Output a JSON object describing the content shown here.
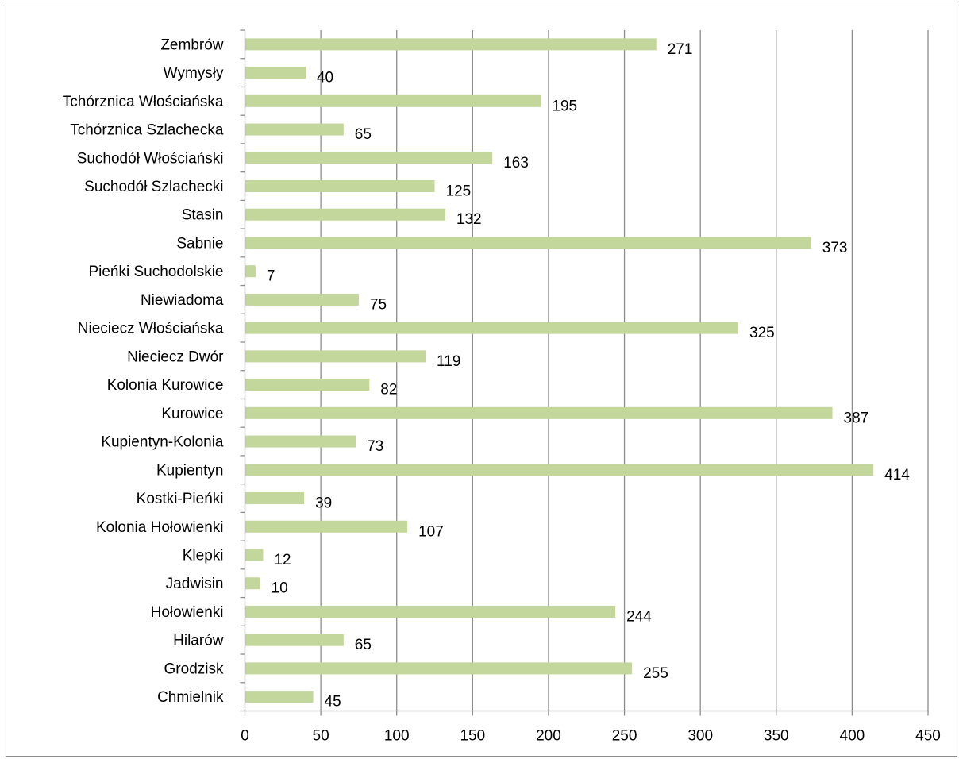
{
  "chart_data": {
    "type": "bar",
    "orientation": "horizontal",
    "categories": [
      "Zembrów",
      "Wymysły",
      "Tchórznica Włościańska",
      "Tchórznica Szlachecka",
      "Suchodół Włościański",
      "Suchodół Szlachecki",
      "Stasin",
      "Sabnie",
      "Pieńki Suchodolskie",
      "Niewiadoma",
      "Nieciecz Włościańska",
      "Nieciecz Dwór",
      "Kolonia Kurowice",
      "Kurowice",
      "Kupientyn-Kolonia",
      "Kupientyn",
      "Kostki-Pieńki",
      "Kolonia Hołowienki",
      "Klepki",
      "Jadwisin",
      "Hołowienki",
      "Hilarów",
      "Grodzisk",
      "Chmielnik"
    ],
    "values": [
      271,
      40,
      195,
      65,
      163,
      125,
      132,
      373,
      7,
      75,
      325,
      119,
      82,
      387,
      73,
      414,
      39,
      107,
      12,
      10,
      244,
      65,
      255,
      45
    ],
    "data_labels": [
      "271",
      "40",
      "195",
      "65",
      "163",
      "125",
      "132",
      "373",
      "7",
      "75",
      "325",
      "119",
      "82",
      "387",
      "73",
      "414",
      "39",
      "107",
      "12",
      "10",
      "244",
      "65",
      "255",
      "45"
    ],
    "xlim": [
      0,
      450
    ],
    "xticks": [
      0,
      50,
      100,
      150,
      200,
      250,
      300,
      350,
      400,
      450
    ],
    "xtick_labels": [
      "0",
      "50",
      "100",
      "150",
      "200",
      "250",
      "300",
      "350",
      "400",
      "450"
    ],
    "grid": "vertical",
    "legend": "none",
    "bar_color": "#c3d69b",
    "grid_color": "#8c8c8c",
    "axis_color": "#8c8c8c"
  }
}
